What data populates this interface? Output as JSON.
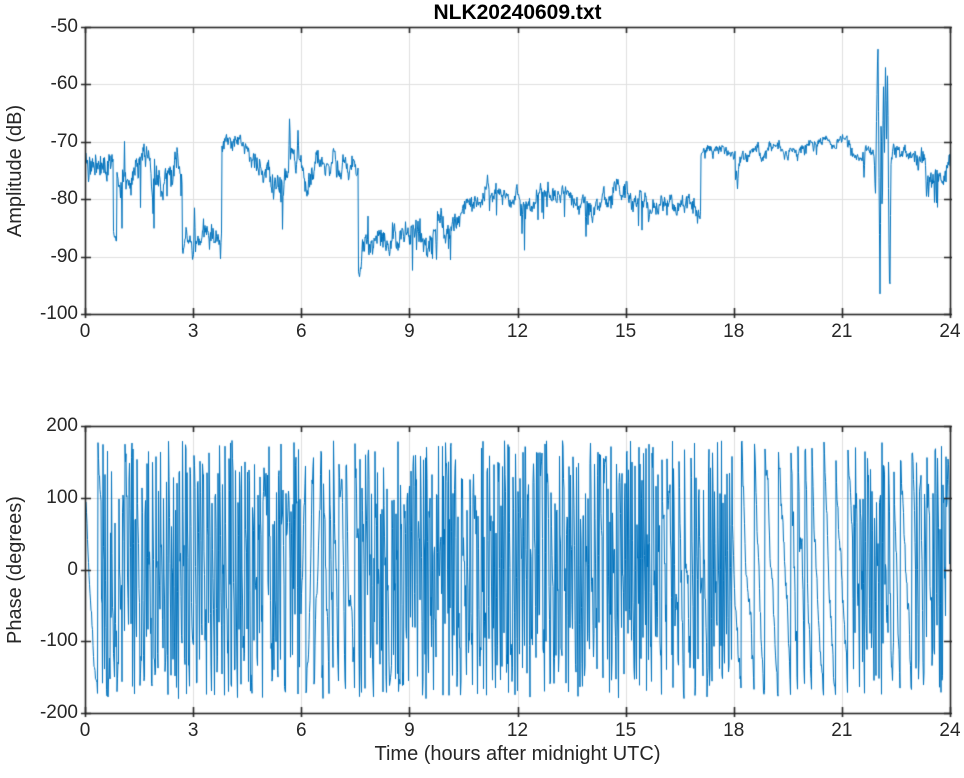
{
  "figure": {
    "title": "NLK20240609.txt",
    "background": "#ffffff"
  },
  "colors": {
    "line": "#0072BD",
    "grid": "#e0e0e0",
    "axis": "#262626",
    "text": "#262626",
    "title_text": "#000000"
  },
  "chart_data": [
    {
      "type": "line",
      "title": "NLK20240609.txt",
      "ylabel": "Amplitude (dB)",
      "xlabel": "",
      "xlim": [
        0,
        24
      ],
      "ylim": [
        -100,
        -50
      ],
      "xticks": [
        0,
        3,
        6,
        9,
        12,
        15,
        18,
        21,
        24
      ],
      "yticks": [
        -50,
        -60,
        -70,
        -80,
        -90,
        -100
      ],
      "grid": true,
      "legend": "none",
      "model": {
        "comment": "VLF amplitude vs UTC hour; piecewise segments: t0,t1 hours; v0,v1 mean dB; noise half-range dB; spiky=frequent downward excursions; points=explicit polyline for the 22h disturbance burst",
        "segments": [
          {
            "t0": 0.0,
            "t1": 0.78,
            "v0": -74,
            "v1": -74,
            "noise": 2.0
          },
          {
            "t0": 0.78,
            "t1": 0.88,
            "v0": -85,
            "v1": -85,
            "noise": 1.6
          },
          {
            "t0": 0.88,
            "t1": 2.7,
            "v0": -74.5,
            "v1": -74.5,
            "noise": 2.3,
            "spiky": true
          },
          {
            "t0": 2.7,
            "t1": 3.8,
            "v0": -86,
            "v1": -86.2,
            "noise": 1.5,
            "spiky": true
          },
          {
            "t0": 3.8,
            "t1": 4.55,
            "v0": -69.8,
            "v1": -70.5,
            "noise": 1.1
          },
          {
            "t0": 4.55,
            "t1": 5.1,
            "v0": -71.5,
            "v1": -76,
            "noise": 1.8
          },
          {
            "t0": 5.1,
            "t1": 5.7,
            "v0": -76.5,
            "v1": -76.5,
            "noise": 2.1,
            "spiky": true
          },
          {
            "t0": 5.7,
            "t1": 7.0,
            "v0": -75.5,
            "v1": -74.5,
            "noise": 1.7
          },
          {
            "t0": 7.0,
            "t1": 7.58,
            "v0": -74,
            "v1": -73.5,
            "noise": 1.4
          },
          {
            "t0": 7.58,
            "t1": 7.7,
            "v0": -90.5,
            "v1": -87.5,
            "noise": 1.8
          },
          {
            "t0": 7.7,
            "t1": 9.2,
            "v0": -87,
            "v1": -86.5,
            "noise": 1.7,
            "spiky": true
          },
          {
            "t0": 9.2,
            "t1": 10.35,
            "v0": -86.5,
            "v1": -85.5,
            "noise": 1.7,
            "spiky": true
          },
          {
            "t0": 10.35,
            "t1": 11.15,
            "v0": -85,
            "v1": -79,
            "noise": 1.6
          },
          {
            "t0": 11.15,
            "t1": 12.1,
            "v0": -78.7,
            "v1": -79,
            "noise": 1.3,
            "spiky": true
          },
          {
            "t0": 12.1,
            "t1": 13.5,
            "v0": -80.3,
            "v1": -80.5,
            "noise": 1.4,
            "spiky": true
          },
          {
            "t0": 13.5,
            "t1": 15.2,
            "v0": -80.7,
            "v1": -80.3,
            "noise": 1.5,
            "spiky": true
          },
          {
            "t0": 15.2,
            "t1": 17.08,
            "v0": -81,
            "v1": -80.8,
            "noise": 1.4,
            "spiky": true
          },
          {
            "t0": 17.08,
            "t1": 18.04,
            "v0": -71.5,
            "v1": -71.8,
            "noise": 0.9
          },
          {
            "t0": 18.04,
            "t1": 18.16,
            "v0": -76,
            "v1": -73,
            "noise": 1.0
          },
          {
            "t0": 18.16,
            "t1": 20.3,
            "v0": -72,
            "v1": -70.8,
            "noise": 0.9
          },
          {
            "t0": 20.3,
            "t1": 21.15,
            "v0": -69.7,
            "v1": -69.7,
            "noise": 0.8
          },
          {
            "t0": 21.15,
            "t1": 21.9,
            "v0": -71.5,
            "v1": -73,
            "noise": 1.0
          },
          {
            "t0": 21.9,
            "t1": 22.38,
            "v0": -73,
            "v1": -72.5,
            "noise": 0.8,
            "points": [
              [
                21.9,
                -73
              ],
              [
                21.93,
                -80
              ],
              [
                21.96,
                -67
              ],
              [
                22.0,
                -52
              ],
              [
                22.03,
                -76
              ],
              [
                22.06,
                -98
              ],
              [
                22.09,
                -62
              ],
              [
                22.12,
                -86
              ],
              [
                22.15,
                -58
              ],
              [
                22.18,
                -73
              ],
              [
                22.21,
                -56.5
              ],
              [
                22.24,
                -70
              ],
              [
                22.27,
                -57
              ],
              [
                22.3,
                -84
              ],
              [
                22.33,
                -99
              ],
              [
                22.36,
                -74
              ],
              [
                22.38,
                -72.5
              ]
            ]
          },
          {
            "t0": 22.38,
            "t1": 23.1,
            "v0": -72.5,
            "v1": -73,
            "noise": 1.1
          },
          {
            "t0": 23.1,
            "t1": 24.0,
            "v0": -74.5,
            "v1": -75.5,
            "noise": 1.6,
            "spiky": true
          }
        ],
        "events": [
          [
            0.1,
            -77
          ],
          [
            2.98,
            -90.5
          ],
          [
            3.04,
            -81.5
          ],
          [
            5.67,
            -66
          ],
          [
            5.91,
            -68
          ],
          [
            7.62,
            -93.5
          ],
          [
            9.75,
            -90.5
          ],
          [
            13.9,
            -86.5
          ],
          [
            18.1,
            -78.2
          ],
          [
            21.62,
            -76.2
          ],
          [
            23.35,
            -79.5
          ]
        ]
      }
    },
    {
      "type": "line",
      "title": "",
      "ylabel": "Phase (degrees)",
      "xlabel": "Time (hours after midnight UTC)",
      "xlim": [
        0,
        24
      ],
      "ylim": [
        -200,
        200
      ],
      "xticks": [
        0,
        3,
        6,
        9,
        12,
        15,
        18,
        21,
        24
      ],
      "yticks": [
        200,
        100,
        0,
        -100,
        -200
      ],
      "grid": true,
      "legend": "none",
      "model": {
        "comment": "Wrapped phase (clipped at +/-180 deg); segments give wrap rate (wraps/hour), jitter (deg/sample) and drift direction (-1 descending default)",
        "start_deg": 140,
        "clip_deg": 180,
        "segments": [
          {
            "t0": 0.0,
            "t1": 0.45,
            "rate": 2.4,
            "jitter": 12
          },
          {
            "t0": 0.45,
            "t1": 2.9,
            "rate": 13,
            "jitter": 95
          },
          {
            "t0": 2.9,
            "t1": 3.9,
            "rate": 9,
            "jitter": 80
          },
          {
            "t0": 3.9,
            "t1": 6.0,
            "rate": 13,
            "jitter": 100
          },
          {
            "t0": 6.0,
            "t1": 6.6,
            "rate": 4,
            "jitter": 30,
            "dir": 1
          },
          {
            "t0": 6.6,
            "t1": 7.6,
            "rate": 5,
            "jitter": 40
          },
          {
            "t0": 7.6,
            "t1": 10.4,
            "rate": 14,
            "jitter": 105
          },
          {
            "t0": 10.4,
            "t1": 13.0,
            "rate": 12,
            "jitter": 95
          },
          {
            "t0": 13.0,
            "t1": 16.0,
            "rate": 13,
            "jitter": 100
          },
          {
            "t0": 16.0,
            "t1": 16.9,
            "rate": 7,
            "jitter": 60
          },
          {
            "t0": 16.9,
            "t1": 18.0,
            "rate": 11,
            "jitter": 90
          },
          {
            "t0": 18.0,
            "t1": 19.6,
            "rate": 3.2,
            "jitter": 22
          },
          {
            "t0": 19.6,
            "t1": 20.1,
            "rate": 7,
            "jitter": 55
          },
          {
            "t0": 20.1,
            "t1": 21.3,
            "rate": 2.8,
            "jitter": 20
          },
          {
            "t0": 21.3,
            "t1": 22.45,
            "rate": 12,
            "jitter": 95
          },
          {
            "t0": 22.45,
            "t1": 23.05,
            "rate": 4,
            "jitter": 28
          },
          {
            "t0": 23.05,
            "t1": 24.0,
            "rate": 11,
            "jitter": 90
          }
        ]
      }
    }
  ]
}
